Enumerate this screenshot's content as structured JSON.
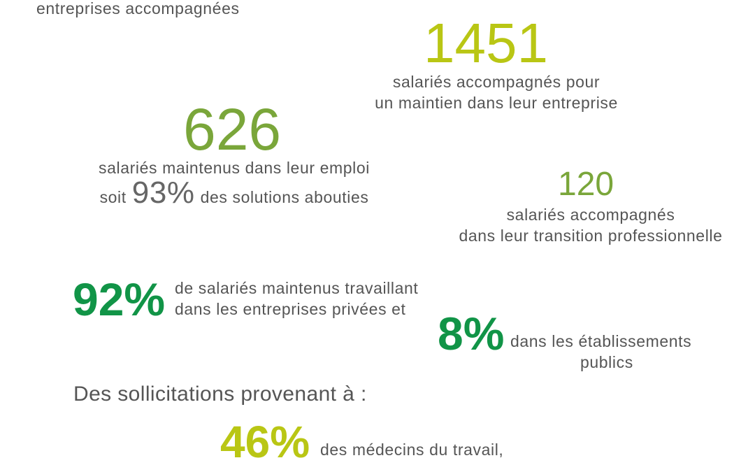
{
  "top": {
    "fragment": "entreprises accompagnées"
  },
  "stats": {
    "s1451": {
      "value": "1451",
      "line1": "salariés accompagnés pour",
      "line2": "un maintien dans leur entreprise"
    },
    "s626": {
      "value": "626",
      "line1": "salariés maintenus dans leur emploi",
      "line2_prefix": "soit",
      "line2_pct": "93%",
      "line2_suffix": "des solutions abouties"
    },
    "s120": {
      "value": "120",
      "line1": "salariés accompagnés",
      "line2": "dans leur transition professionnelle"
    },
    "s92": {
      "value": "92%",
      "line1": "de salariés maintenus travaillant",
      "line2": "dans les entreprises privées et"
    },
    "s8": {
      "value": "8%",
      "line1": "dans les établissements",
      "line2": "publics"
    }
  },
  "sollicitations": {
    "heading": "Des sollicitations provenant à :",
    "s46": {
      "value": "46%",
      "text": "des médecins du travail,"
    }
  },
  "colors": {
    "lime": "#b9c614",
    "green": "#7aa63a",
    "dark_green": "#119447",
    "text_gray": "#555555"
  }
}
